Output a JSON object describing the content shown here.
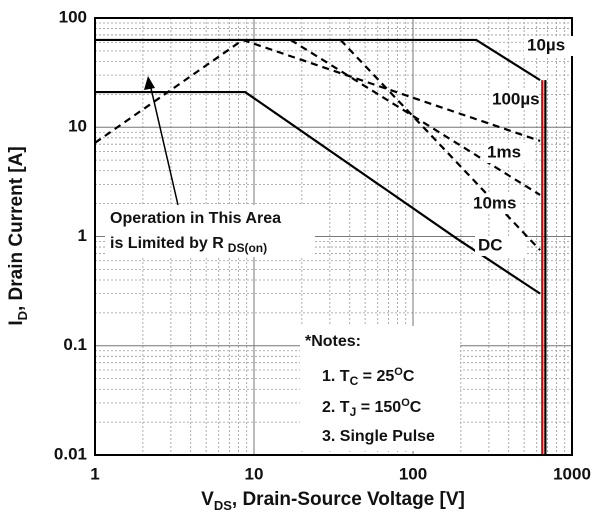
{
  "chart_data": {
    "type": "line",
    "xlog": true,
    "ylog": true,
    "grid": true,
    "xlim": [
      1,
      1000
    ],
    "ylim": [
      0.01,
      100
    ],
    "xticks": [
      1,
      10,
      100,
      1000
    ],
    "yticks": [
      100,
      10,
      1,
      0.1,
      0.01
    ],
    "x_label": {
      "main": "V",
      "sub": "DS",
      "rest": ", Drain-Source Voltage [V]"
    },
    "y_label": {
      "main": "I",
      "sub": "D",
      "rest": ", Drain Current [A]"
    },
    "annotation": {
      "line1": "Operation in This Area",
      "line2": "is Limited by R",
      "sub": "DS(on)"
    },
    "notes": {
      "title": "*Notes:",
      "line1": [
        "1. T",
        "C",
        " = 25",
        "O",
        "C"
      ],
      "line2": [
        "2. T",
        "J",
        " = 150",
        "O",
        "C"
      ],
      "line3": "3. Single Pulse"
    },
    "series": [
      {
        "name": "10µs",
        "color": "#000000",
        "dash": false,
        "x": [
          1,
          250,
          630
        ],
        "values": [
          63,
          63,
          27
        ]
      },
      {
        "name": "100µs",
        "color": "#000000",
        "dash": true,
        "x": [
          8.5,
          630
        ],
        "values": [
          63,
          7.5
        ]
      },
      {
        "name": "1ms",
        "color": "#000000",
        "dash": true,
        "x": [
          17,
          630
        ],
        "values": [
          63,
          2.4
        ]
      },
      {
        "name": "10ms",
        "color": "#000000",
        "dash": true,
        "x": [
          35,
          630
        ],
        "values": [
          63,
          0.75
        ]
      },
      {
        "name": "DC",
        "color": "#000000",
        "dash": false,
        "x": [
          1,
          8.8,
          190,
          630
        ],
        "values": [
          21,
          21,
          0.95,
          0.3
        ]
      },
      {
        "color": "#000000",
        "dash": true,
        "x": [
          1,
          8.5
        ],
        "values": [
          7.2,
          63
        ]
      },
      {
        "color": "#e00000",
        "dash": false,
        "x": [
          650,
          650
        ],
        "values": [
          0.01,
          27
        ]
      },
      {
        "color": "#000000",
        "dash": false,
        "x": [
          680,
          680
        ],
        "values": [
          0.01,
          27
        ]
      }
    ]
  }
}
